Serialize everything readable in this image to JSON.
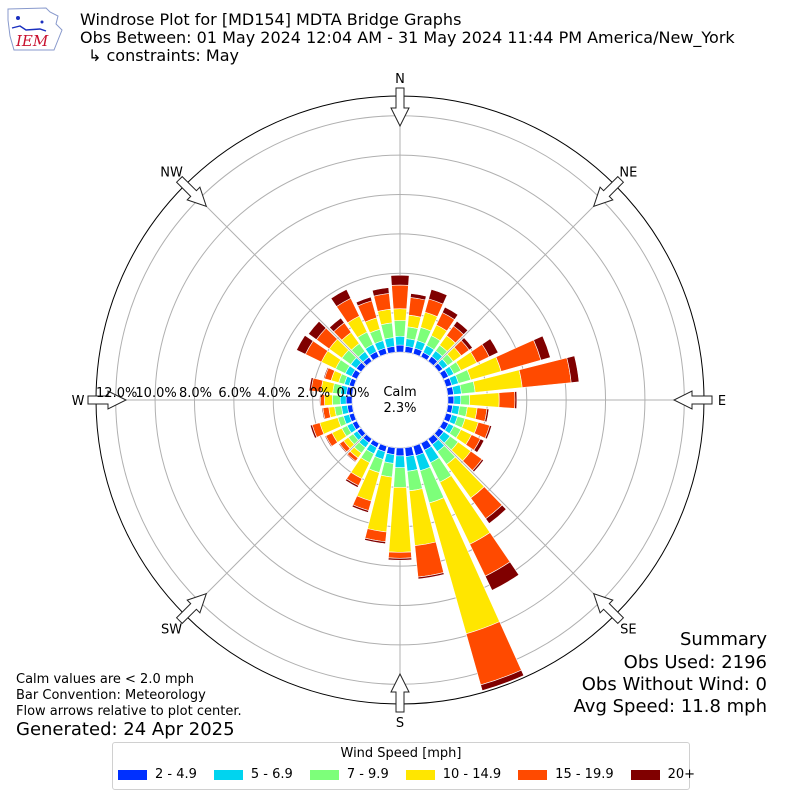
{
  "header": {
    "title_line1": "Windrose Plot for [MD154] MDTA Bridge Graphs",
    "title_line2": "Obs Between: 01 May 2024 12:04 AM - 31 May 2024 11:44 PM America/New_York",
    "title_line3": "↳ constraints: May",
    "logo_text": "IEM"
  },
  "notes": {
    "calm_note": "Calm values are < 2.0 mph",
    "bar_convention": "Bar Convention: Meteorology",
    "flow_arrows": "Flow arrows relative to plot center.",
    "generated": "Generated: 24 Apr 2025"
  },
  "summary": {
    "heading": "Summary",
    "obs_used": "Obs Used: 2196",
    "obs_without_wind": "Obs Without Wind: 0",
    "avg_speed": "Avg Speed: 11.8 mph"
  },
  "legend": {
    "title": "Wind Speed [mph]",
    "items": [
      {
        "label": "2 - 4.9",
        "color": "#0030ff"
      },
      {
        "label": "5 - 6.9",
        "color": "#00d4ef"
      },
      {
        "label": "7 - 9.9",
        "color": "#7dff7a"
      },
      {
        "label": "10 - 14.9",
        "color": "#ffe600"
      },
      {
        "label": "15 - 19.9",
        "color": "#ff4a00"
      },
      {
        "label": "20+",
        "color": "#800000"
      }
    ]
  },
  "chart_data": {
    "type": "windrose",
    "title": "Windrose Plot for [MD154] MDTA Bridge Graphs",
    "calm_label": "Calm",
    "calm_value": "2.3%",
    "compass_labels": [
      "N",
      "NE",
      "E",
      "SE",
      "S",
      "SW",
      "W",
      "NW"
    ],
    "radial_tick_labels": [
      "0.0%",
      "2.0%",
      "4.0%",
      "6.0%",
      "8.0%",
      "10.0%",
      "12.0%"
    ],
    "radial_max_percent": 13,
    "bin_labels": [
      "2 - 4.9",
      "5 - 6.9",
      "7 - 9.9",
      "10 - 14.9",
      "15 - 19.9",
      "20+"
    ],
    "directions_deg": [
      0,
      10,
      20,
      30,
      40,
      50,
      60,
      70,
      80,
      90,
      100,
      110,
      120,
      130,
      140,
      150,
      160,
      170,
      180,
      190,
      200,
      210,
      220,
      230,
      240,
      250,
      260,
      270,
      280,
      290,
      300,
      310,
      320,
      330,
      340,
      350
    ],
    "cumulative_percent": [
      [
        0.35,
        0.8,
        1.6,
        2.2,
        3.4,
        3.9
      ],
      [
        0.3,
        0.7,
        1.3,
        1.9,
        2.8,
        3.0
      ],
      [
        0.3,
        0.7,
        1.4,
        2.2,
        2.9,
        3.4
      ],
      [
        0.25,
        0.65,
        1.2,
        1.8,
        2.5,
        2.8
      ],
      [
        0.3,
        0.65,
        1.0,
        1.6,
        2.2,
        2.5
      ],
      [
        0.25,
        0.55,
        0.9,
        1.4,
        1.9,
        2.1
      ],
      [
        0.3,
        0.6,
        1.0,
        1.9,
        2.6,
        3.1
      ],
      [
        0.3,
        0.65,
        1.3,
        2.9,
        5.0,
        5.5
      ],
      [
        0.3,
        0.7,
        1.4,
        3.8,
        6.3,
        6.7
      ],
      [
        0.3,
        0.65,
        1.1,
        2.6,
        3.4,
        3.5
      ],
      [
        0.25,
        0.6,
        1.0,
        1.5,
        2.0,
        2.1
      ],
      [
        0.3,
        0.6,
        1.0,
        1.7,
        2.3,
        2.4
      ],
      [
        0.3,
        0.6,
        1.0,
        1.6,
        2.1,
        2.3
      ],
      [
        0.3,
        0.7,
        1.2,
        2.0,
        2.7,
        2.8
      ],
      [
        0.35,
        0.8,
        1.6,
        3.7,
        5.0,
        5.3
      ],
      [
        0.4,
        1.1,
        2.2,
        5.7,
        7.5,
        8.3
      ],
      [
        0.5,
        1.3,
        3.0,
        9.9,
        12.6,
        12.9
      ],
      [
        0.45,
        1.2,
        2.2,
        5.0,
        6.6,
        6.7
      ],
      [
        0.4,
        1.0,
        2.0,
        5.3,
        5.6,
        5.7
      ],
      [
        0.35,
        0.8,
        1.5,
        4.3,
        4.8,
        4.9
      ],
      [
        0.3,
        0.7,
        1.4,
        2.9,
        3.4,
        3.5
      ],
      [
        0.25,
        0.6,
        1.1,
        2.0,
        2.4,
        2.5
      ],
      [
        0.25,
        0.55,
        0.9,
        1.2,
        1.4,
        1.45
      ],
      [
        0.25,
        0.5,
        0.8,
        1.1,
        1.35,
        1.4
      ],
      [
        0.25,
        0.55,
        0.85,
        1.4,
        1.75,
        1.8
      ],
      [
        0.25,
        0.55,
        0.85,
        1.8,
        2.2,
        2.3
      ],
      [
        0.25,
        0.55,
        0.9,
        1.2,
        1.5,
        1.55
      ],
      [
        0.3,
        0.6,
        1.0,
        1.4,
        1.6,
        1.65
      ],
      [
        0.3,
        0.6,
        1.0,
        1.6,
        2.1,
        2.2
      ],
      [
        0.25,
        0.5,
        0.8,
        1.2,
        1.55,
        1.6
      ],
      [
        0.3,
        0.65,
        1.2,
        2.0,
        2.9,
        3.4
      ],
      [
        0.3,
        0.65,
        1.2,
        2.0,
        2.8,
        3.3
      ],
      [
        0.25,
        0.6,
        1.1,
        1.8,
        2.4,
        2.7
      ],
      [
        0.3,
        0.7,
        1.4,
        2.3,
        3.3,
        3.8
      ],
      [
        0.3,
        0.7,
        1.3,
        1.9,
        2.8,
        3.0
      ],
      [
        0.3,
        0.75,
        1.5,
        2.2,
        3.0,
        3.3
      ]
    ]
  }
}
